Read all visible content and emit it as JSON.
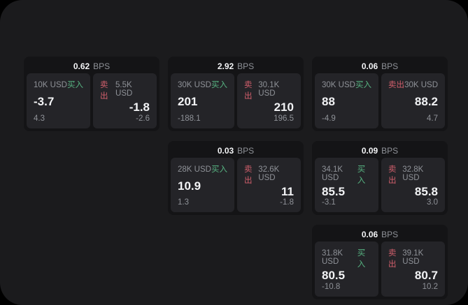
{
  "colors": {
    "bg": "#000000",
    "surface": "#1b1b1d",
    "card": "#141416",
    "panel": "#242428",
    "text-primary": "#f2f3f5",
    "text-secondary": "#8f9298",
    "buy": "#57b482",
    "sell": "#d25f6c"
  },
  "labels": {
    "bps": "BPS",
    "buy": "买入",
    "sell": "卖出"
  },
  "cards": [
    {
      "row": 1,
      "col": 1,
      "bps": "0.62",
      "buy": {
        "size": "10K USD",
        "price": "-3.7",
        "sub": "4.3"
      },
      "sell": {
        "size": "5.5K USD",
        "price": "-1.8",
        "sub": "-2.6"
      }
    },
    {
      "row": 1,
      "col": 2,
      "bps": "2.92",
      "buy": {
        "size": "30K USD",
        "price": "201",
        "sub": "-188.1"
      },
      "sell": {
        "size": "30.1K USD",
        "price": "210",
        "sub": "196.5"
      }
    },
    {
      "row": 1,
      "col": 3,
      "bps": "0.06",
      "buy": {
        "size": "30K USD",
        "price": "88",
        "sub": "-4.9"
      },
      "sell": {
        "size": "30K USD",
        "price": "88.2",
        "sub": "4.7"
      }
    },
    {
      "row": 2,
      "col": 2,
      "bps": "0.03",
      "buy": {
        "size": "28K USD",
        "price": "10.9",
        "sub": "1.3"
      },
      "sell": {
        "size": "32.6K USD",
        "price": "11",
        "sub": "-1.8"
      }
    },
    {
      "row": 2,
      "col": 3,
      "bps": "0.09",
      "buy": {
        "size": "34.1K USD",
        "price": "85.5",
        "sub": "-3.1"
      },
      "sell": {
        "size": "32.8K USD",
        "price": "85.8",
        "sub": "3.0"
      }
    },
    {
      "row": 3,
      "col": 3,
      "bps": "0.06",
      "buy": {
        "size": "31.8K USD",
        "price": "80.5",
        "sub": "-10.8"
      },
      "sell": {
        "size": "39.1K USD",
        "price": "80.7",
        "sub": "10.2"
      }
    }
  ]
}
